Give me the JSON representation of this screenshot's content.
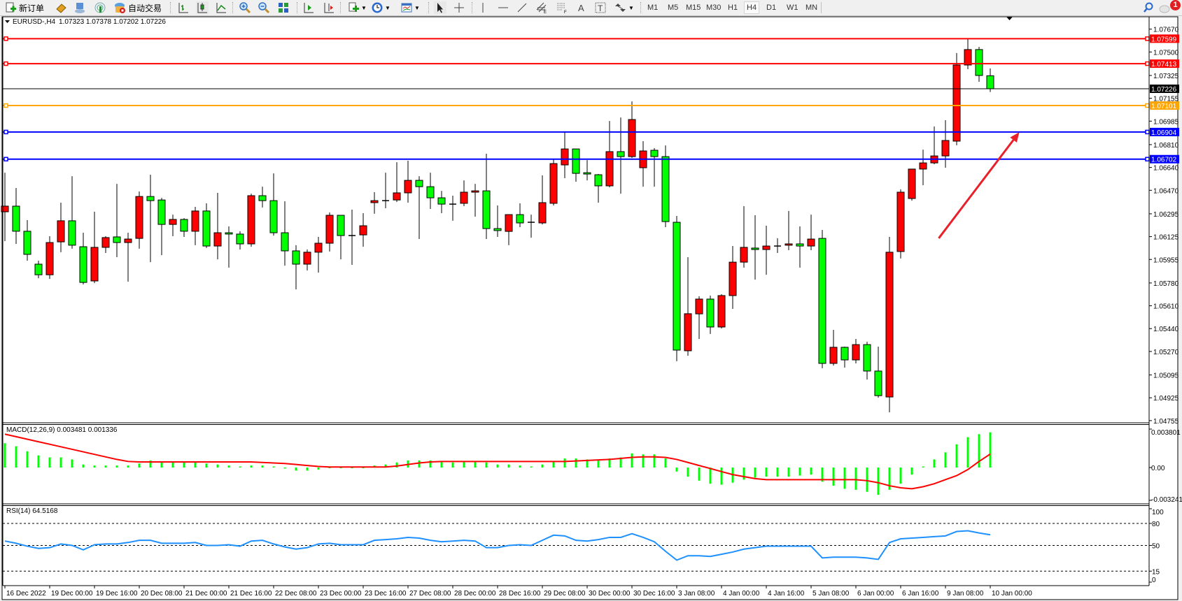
{
  "toolbar": {
    "new_order": "新订单",
    "auto_trading": "自动交易",
    "timeframes": [
      "M1",
      "M5",
      "M15",
      "M30",
      "H1",
      "H4",
      "D1",
      "W1",
      "MN"
    ],
    "active_timeframe": "H4",
    "notification_count": "1",
    "icons": [
      "new-order-icon",
      "meta-editor-icon",
      "navigator-icon",
      "signal-icon",
      "auto-trading-icon",
      "bar-chart-icon",
      "candlestick-icon",
      "line-chart-icon",
      "zoom-in-icon",
      "zoom-out-icon",
      "tile-windows-icon",
      "auto-scroll-icon",
      "chart-shift-icon",
      "indicators-icon",
      "periods-icon",
      "templates-icon",
      "cursor-icon",
      "crosshair-icon",
      "vertical-line-icon",
      "horizontal-line-icon",
      "trendline-icon",
      "equidistant-channel-icon",
      "fibonacci-icon",
      "text-icon",
      "text-label-icon",
      "arrows-icon",
      "search-icon",
      "notification-icon"
    ]
  },
  "chart": {
    "title_symbol": "EURUSD-,H4",
    "title_ohlc": "1.07323 1.07378 1.07202 1.07226"
  },
  "chart_data": {
    "type": "candlestick",
    "symbol": "EURUSD-",
    "timeframe": "H4",
    "bull_color": "#ff0000",
    "bear_color": "#00ff00",
    "wick_color": "#000000",
    "price_range": [
      1.04755,
      1.0767
    ],
    "price_ticks": [
      "1.07670",
      "1.07500",
      "1.07325",
      "1.07155",
      "1.06985",
      "1.06810",
      "1.06640",
      "1.06470",
      "1.06295",
      "1.06125",
      "1.05955",
      "1.05780",
      "1.05610",
      "1.05440",
      "1.05270",
      "1.05095",
      "1.04925",
      "1.04755"
    ],
    "date_labels": [
      {
        "bar": 0,
        "text": "16 Dec 2022"
      },
      {
        "bar": 4,
        "text": "19 Dec 00:00"
      },
      {
        "bar": 8,
        "text": "19 Dec 16:00"
      },
      {
        "bar": 12,
        "text": "20 Dec 08:00"
      },
      {
        "bar": 16,
        "text": "21 Dec 00:00"
      },
      {
        "bar": 20,
        "text": "21 Dec 16:00"
      },
      {
        "bar": 24,
        "text": "22 Dec 08:00"
      },
      {
        "bar": 28,
        "text": "23 Dec 00:00"
      },
      {
        "bar": 32,
        "text": "23 Dec 16:00"
      },
      {
        "bar": 36,
        "text": "27 Dec 08:00"
      },
      {
        "bar": 40,
        "text": "28 Dec 00:00"
      },
      {
        "bar": 44,
        "text": "28 Dec 16:00"
      },
      {
        "bar": 48,
        "text": "29 Dec 08:00"
      },
      {
        "bar": 52,
        "text": "30 Dec 00:00"
      },
      {
        "bar": 56,
        "text": "30 Dec 16:00"
      },
      {
        "bar": 60,
        "text": "3 Jan 08:00"
      },
      {
        "bar": 64,
        "text": "4 Jan 00:00"
      },
      {
        "bar": 68,
        "text": "4 Jan 16:00"
      },
      {
        "bar": 72,
        "text": "5 Jan 08:00"
      },
      {
        "bar": 76,
        "text": "6 Jan 00:00"
      },
      {
        "bar": 80,
        "text": "6 Jan 16:00"
      },
      {
        "bar": 84,
        "text": "9 Jan 08:00"
      },
      {
        "bar": 88,
        "text": "10 Jan 00:00"
      }
    ],
    "candles_ohlc": [
      [
        1.0631,
        1.06601,
        1.06092,
        1.06352
      ],
      [
        1.06352,
        1.06487,
        1.06071,
        1.06165
      ],
      [
        1.06165,
        1.06248,
        1.05946,
        1.05993
      ],
      [
        1.0592,
        1.05946,
        1.05815,
        1.05841
      ],
      [
        1.05841,
        1.06128,
        1.0581,
        1.06081
      ],
      [
        1.06086,
        1.06378,
        1.06009,
        1.06243
      ],
      [
        1.06243,
        1.06575,
        1.06035,
        1.06061
      ],
      [
        1.0605,
        1.06154,
        1.05769,
        1.05784
      ],
      [
        1.05795,
        1.0631,
        1.05779,
        1.06045
      ],
      [
        1.06045,
        1.06128,
        1.06003,
        1.06118
      ],
      [
        1.06123,
        1.06518,
        1.05972,
        1.06081
      ],
      [
        1.06081,
        1.06154,
        1.0579,
        1.06107
      ],
      [
        1.06112,
        1.06461,
        1.06035,
        1.06424
      ],
      [
        1.06424,
        1.06586,
        1.05935,
        1.06393
      ],
      [
        1.06398,
        1.06414,
        1.05987,
        1.06216
      ],
      [
        1.06216,
        1.06289,
        1.06128,
        1.06253
      ],
      [
        1.06253,
        1.06263,
        1.06123,
        1.06165
      ],
      [
        1.06165,
        1.06347,
        1.06061,
        1.06316
      ],
      [
        1.06316,
        1.06373,
        1.0604,
        1.06055
      ],
      [
        1.06055,
        1.06451,
        1.05956,
        1.06154
      ],
      [
        1.06154,
        1.06201,
        1.05894,
        1.06144
      ],
      [
        1.06144,
        1.06165,
        1.06029,
        1.06071
      ],
      [
        1.06071,
        1.06445,
        1.0605,
        1.0643
      ],
      [
        1.0643,
        1.06497,
        1.06342,
        1.06393
      ],
      [
        1.06393,
        1.06596,
        1.06133,
        1.06154
      ],
      [
        1.06154,
        1.06388,
        1.05909,
        1.06019
      ],
      [
        1.06019,
        1.06061,
        1.05732,
        1.0592
      ],
      [
        1.0592,
        1.06029,
        1.05873,
        1.06009
      ],
      [
        1.06009,
        1.06123,
        1.05857,
        1.06076
      ],
      [
        1.06076,
        1.06305,
        1.06014,
        1.06284
      ],
      [
        1.06284,
        1.06284,
        1.05956,
        1.06133
      ],
      [
        1.06133,
        1.06326,
        1.05915,
        1.06133
      ],
      [
        1.06138,
        1.063,
        1.0605,
        1.06206
      ],
      [
        1.06378,
        1.06456,
        1.06295,
        1.06393
      ],
      [
        1.06393,
        1.06601,
        1.06336,
        1.06393
      ],
      [
        1.06398,
        1.06679,
        1.06383,
        1.06451
      ],
      [
        1.06451,
        1.0669,
        1.06378,
        1.06544
      ],
      [
        1.06544,
        1.06575,
        1.06107,
        1.06497
      ],
      [
        1.06497,
        1.06601,
        1.06331,
        1.06414
      ],
      [
        1.06414,
        1.06466,
        1.063,
        1.06367
      ],
      [
        1.06367,
        1.0643,
        1.06243,
        1.06367
      ],
      [
        1.06373,
        1.06544,
        1.06352,
        1.06456
      ],
      [
        1.06456,
        1.06518,
        1.06274,
        1.06466
      ],
      [
        1.06466,
        1.06742,
        1.06107,
        1.06185
      ],
      [
        1.06185,
        1.06357,
        1.06123,
        1.0617
      ],
      [
        1.06164,
        1.06289,
        1.06061,
        1.06289
      ],
      [
        1.06289,
        1.06373,
        1.06196,
        1.06227
      ],
      [
        1.06232,
        1.06289,
        1.06117,
        1.06232
      ],
      [
        1.06227,
        1.06581,
        1.06216,
        1.06378
      ],
      [
        1.06373,
        1.067,
        1.06357,
        1.06669
      ],
      [
        1.06659,
        1.06908,
        1.0656,
        1.06778
      ],
      [
        1.06778,
        1.06778,
        1.06534,
        1.06596
      ],
      [
        1.06601,
        1.06695,
        1.06544,
        1.06591
      ],
      [
        1.06586,
        1.06591,
        1.06378,
        1.06503
      ],
      [
        1.06503,
        1.06986,
        1.06492,
        1.06758
      ],
      [
        1.06758,
        1.07012,
        1.06445,
        1.06721
      ],
      [
        1.06721,
        1.07132,
        1.06711,
        1.06997
      ],
      [
        1.06638,
        1.06836,
        1.06497,
        1.06763
      ],
      [
        1.06768,
        1.06784,
        1.06497,
        1.06721
      ],
      [
        1.06721,
        1.06804,
        1.06196,
        1.06237
      ],
      [
        1.06232,
        1.06279,
        1.05197,
        1.0528
      ],
      [
        1.05275,
        1.05972,
        1.05238,
        1.05551
      ],
      [
        1.0555,
        1.05681,
        1.05363,
        1.0566
      ],
      [
        1.0566,
        1.05686,
        1.054,
        1.05452
      ],
      [
        1.05452,
        1.05696,
        1.05441,
        1.05686
      ],
      [
        1.05686,
        1.06055,
        1.05587,
        1.05935
      ],
      [
        1.05935,
        1.06352,
        1.05894,
        1.06045
      ],
      [
        1.0604,
        1.06284,
        1.05805,
        1.06029
      ],
      [
        1.06029,
        1.06206,
        1.05841,
        1.06055
      ],
      [
        1.06055,
        1.06113,
        1.06003,
        1.06055
      ],
      [
        1.06061,
        1.06316,
        1.06024,
        1.06071
      ],
      [
        1.06071,
        1.06201,
        1.05894,
        1.06055
      ],
      [
        1.06055,
        1.06289,
        1.06024,
        1.06107
      ],
      [
        1.06112,
        1.06175,
        1.05145,
        1.05181
      ],
      [
        1.05181,
        1.05431,
        1.05165,
        1.05301
      ],
      [
        1.05301,
        1.05306,
        1.0515,
        1.05207
      ],
      [
        1.05207,
        1.05363,
        1.05181,
        1.05321
      ],
      [
        1.05321,
        1.05342,
        1.05061,
        1.05124
      ],
      [
        1.05124,
        1.05306,
        1.04926,
        1.04941
      ],
      [
        1.04931,
        1.06123,
        1.04817,
        1.06009
      ],
      [
        1.06014,
        1.06477,
        1.05962,
        1.06456
      ],
      [
        1.06409,
        1.06628,
        1.06393,
        1.06628
      ],
      [
        1.06628,
        1.06773,
        1.06508,
        1.06674
      ],
      [
        1.06674,
        1.06945,
        1.06664,
        1.06726
      ],
      [
        1.06726,
        1.06992,
        1.06638,
        1.06841
      ],
      [
        1.06836,
        1.07492,
        1.06805,
        1.07403
      ],
      [
        1.07403,
        1.07601,
        1.07372,
        1.07518
      ],
      [
        1.07518,
        1.07538,
        1.07278,
        1.07325
      ],
      [
        1.07323,
        1.07378,
        1.07202,
        1.07226
      ]
    ],
    "horizontal_lines": [
      {
        "price": 1.07599,
        "label": "1.07599",
        "color": "#ff0000"
      },
      {
        "price": 1.07413,
        "label": "1.07413",
        "color": "#ff0000"
      },
      {
        "price": 1.07226,
        "label": "1.07226",
        "color": "#000000"
      },
      {
        "price": 1.07101,
        "label": "1.07101",
        "color": "#ffa500"
      },
      {
        "price": 1.06904,
        "label": "1.06904",
        "color": "#0000ff"
      },
      {
        "price": 1.06702,
        "label": "1.06702",
        "color": "#0000ff"
      }
    ],
    "annotation_arrow": {
      "color": "#e8202a",
      "from": {
        "bar": 83.4,
        "price": 1.06113
      },
      "to": {
        "bar": 90.6,
        "price": 1.06903
      }
    },
    "macd": {
      "label": "MACD(12,26,9) 0.003481 0.001336",
      "hist_color": "#00ff00",
      "signal_color": "#ff0000",
      "ticks": [
        {
          "value": 0.003801,
          "text": "0.003801"
        },
        {
          "value": 0,
          "text": "0.00"
        },
        {
          "value": -0.003241,
          "text": "-0.003241"
        }
      ],
      "main": [
        0.0024,
        0.0021,
        0.0016,
        0.0012,
        0.001,
        0.001,
        0.0008,
        0.0003,
        0.0002,
        0.0002,
        0.0002,
        0.0002,
        0.0004,
        0.0007,
        0.0006,
        0.0006,
        0.0005,
        0.0006,
        0.0004,
        0.0003,
        0.0002,
        0.0001,
        0.0002,
        0.0002,
        0.0001,
        -0.0001,
        -0.0003,
        -0.0003,
        -0.0002,
        0.0,
        0.0,
        0.0,
        0.0,
        0.0002,
        0.0003,
        0.0005,
        0.0007,
        0.0007,
        0.0007,
        0.0006,
        0.0005,
        0.0006,
        0.0006,
        0.0005,
        0.0003,
        0.0003,
        0.0002,
        0.0001,
        0.0003,
        0.0006,
        0.0009,
        0.0009,
        0.0008,
        0.0007,
        0.0009,
        0.001,
        0.0014,
        0.0013,
        0.0013,
        0.0009,
        -0.0004,
        -0.0009,
        -0.0013,
        -0.0016,
        -0.0017,
        -0.0015,
        -0.0012,
        -0.001,
        -0.0009,
        -0.0009,
        -0.0009,
        -0.0008,
        -0.0007,
        -0.0014,
        -0.0018,
        -0.0021,
        -0.0022,
        -0.0024,
        -0.0027,
        -0.0022,
        -0.0016,
        -0.0007,
        0.0001,
        0.0008,
        0.0015,
        0.0023,
        0.003,
        0.0033,
        0.003481
      ],
      "signal": [
        0.0033,
        0.00305,
        0.0028,
        0.00255,
        0.0023,
        0.00205,
        0.0018,
        0.00155,
        0.0013,
        0.00105,
        0.0008,
        0.0006,
        0.00055,
        0.00055,
        0.00055,
        0.00055,
        0.00055,
        0.00055,
        0.00055,
        0.00055,
        0.00055,
        0.00055,
        0.00055,
        0.0005,
        0.00045,
        0.0004,
        0.0003,
        0.0002,
        0.0001,
        5e-05,
        5e-05,
        5e-05,
        5e-05,
        5e-05,
        5e-05,
        0.00015,
        0.0003,
        0.00045,
        0.00055,
        0.0006,
        0.0006,
        0.0006,
        0.0006,
        0.0006,
        0.0006,
        0.0006,
        0.0006,
        0.0006,
        0.0006,
        0.0006,
        0.0006,
        0.00065,
        0.0007,
        0.00075,
        0.0008,
        0.0009,
        0.001,
        0.00105,
        0.00105,
        0.001,
        0.0008,
        0.0005,
        0.0002,
        -0.0001,
        -0.0004,
        -0.0007,
        -0.0009,
        -0.0011,
        -0.0012,
        -0.0012,
        -0.0012,
        -0.0012,
        -0.0012,
        -0.0012,
        -0.0012,
        -0.0012,
        -0.0012,
        -0.0013,
        -0.0015,
        -0.0018,
        -0.002,
        -0.0021,
        -0.0019,
        -0.0016,
        -0.0012,
        -0.0008,
        -0.0002,
        0.0006,
        0.001336
      ]
    },
    "rsi": {
      "label": "RSI(14) 64.5168",
      "color": "#1e90ff",
      "levels": [
        80,
        50,
        15
      ],
      "ticks": [
        {
          "value": 100,
          "text": "100"
        },
        {
          "value": 80,
          "text": "80"
        },
        {
          "value": 50,
          "text": "50"
        },
        {
          "value": 15,
          "text": "15"
        },
        {
          "value": 0,
          "text": "0"
        }
      ],
      "values": [
        56,
        53,
        49,
        46,
        47,
        52,
        50,
        44,
        51,
        52,
        52,
        54,
        57,
        57,
        53,
        53,
        53,
        54,
        50,
        50,
        51,
        49,
        56,
        57,
        52,
        48,
        45,
        47,
        52,
        53,
        51,
        51,
        51,
        57,
        58,
        59,
        61,
        60,
        57,
        55,
        56,
        57,
        56,
        47,
        47,
        50,
        51,
        50,
        57,
        64,
        63,
        57,
        56,
        58,
        61,
        61,
        66,
        61,
        55,
        42,
        30,
        36,
        36,
        35,
        38,
        41,
        45,
        47,
        49,
        49,
        49,
        49,
        49,
        33,
        34,
        34,
        34,
        33,
        31,
        54,
        59,
        60,
        61,
        62,
        63,
        69,
        70,
        67,
        64.5168
      ]
    }
  }
}
